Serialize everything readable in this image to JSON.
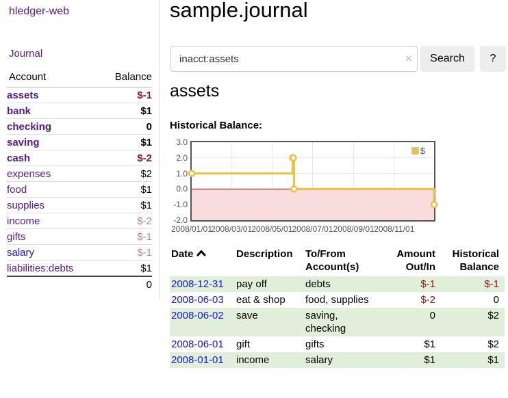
{
  "app": {
    "brand": "hledger-web",
    "nav_journal": "Journal"
  },
  "colors": {
    "accent_purple": "#551a8b",
    "link_blue": "#1515e0",
    "negative_red": "#8b1414",
    "negative_faded_red": "#bd8181",
    "row_green": "#e0eeda",
    "chart_line_gold": "#e8c240",
    "zero_line_dark_red": "#8b0000",
    "negative_region_pink": "#fadcdc"
  },
  "sidebar": {
    "header": {
      "account": "Account",
      "balance": "Balance"
    },
    "accounts": [
      {
        "name": "assets",
        "depth": 1,
        "link_color": "purple",
        "bold": true,
        "balance": "$-1",
        "bal_color": "neg"
      },
      {
        "name": "bank",
        "depth": 2,
        "link_color": "purple",
        "bold": true,
        "balance": "$1",
        "bal_color": "black"
      },
      {
        "name": "checking",
        "depth": 3,
        "link_color": "purple",
        "bold": true,
        "balance": "0",
        "bal_color": "black"
      },
      {
        "name": "saving",
        "depth": 3,
        "link_color": "purple",
        "bold": true,
        "balance": "$1",
        "bal_color": "black"
      },
      {
        "name": "cash",
        "depth": 2,
        "link_color": "purple",
        "bold": true,
        "balance": "$-2",
        "bal_color": "neg"
      },
      {
        "name": "expenses",
        "depth": 1,
        "link_color": "purple",
        "bold": false,
        "balance": "$2",
        "bal_color": "black"
      },
      {
        "name": "food",
        "depth": 2,
        "link_color": "purple",
        "bold": false,
        "balance": "$1",
        "bal_color": "black"
      },
      {
        "name": "supplies",
        "depth": 2,
        "link_color": "purple",
        "bold": false,
        "balance": "$1",
        "bal_color": "black"
      },
      {
        "name": "income",
        "depth": 1,
        "link_color": "purple",
        "bold": false,
        "balance": "$-2",
        "bal_color": "negfade"
      },
      {
        "name": "gifts",
        "depth": 2,
        "link_color": "purple",
        "bold": false,
        "balance": "$-1",
        "bal_color": "negfade"
      },
      {
        "name": "salary",
        "depth": 2,
        "link_color": "blue",
        "bold": false,
        "balance": "$-1",
        "bal_color": "negfade"
      },
      {
        "name": "liabilities:debts",
        "depth": 1,
        "link_color": "purple",
        "bold": false,
        "balance": "$1",
        "bal_color": "black"
      }
    ],
    "total": "0"
  },
  "header": {
    "title": "sample.journal"
  },
  "search": {
    "query": "inacct:assets",
    "clear_icon": "×",
    "search_label": "Search",
    "help_label": "?"
  },
  "account_page": {
    "heading": "assets",
    "chart_label": "Historical Balance:"
  },
  "chart_data": {
    "type": "line",
    "step": true,
    "title": "Historical Balance of assets",
    "series": [
      {
        "name": "$",
        "color": "#e8c240",
        "points": [
          [
            "2008-01-01",
            1
          ],
          [
            "2008-06-01",
            2
          ],
          [
            "2008-06-02",
            2
          ],
          [
            "2008-06-03",
            0
          ],
          [
            "2008-12-31",
            -1
          ]
        ]
      }
    ],
    "x_range": [
      "2008-01-01",
      "2008-12-31"
    ],
    "ylim": [
      -2,
      3
    ],
    "y_ticks": [
      3.0,
      2.0,
      1.0,
      0.0,
      -1.0,
      -2.0
    ],
    "x_ticks": [
      "2008/01/01",
      "2008/03/01",
      "2008/05/01",
      "2008/07/01",
      "2008/09/01",
      "2008/11/01"
    ],
    "legend": {
      "label": "$",
      "position": "top-right"
    },
    "grid": true,
    "negative_region_color": "#fadcdc",
    "zero_line_color": "#8b0000"
  },
  "register": {
    "columns": [
      {
        "label": "Date",
        "sort": "ascending"
      },
      {
        "label": "Description"
      },
      {
        "label": "To/From Account(s)"
      },
      {
        "label": "Amount Out/In"
      },
      {
        "label": "Historical Balance"
      }
    ],
    "rows": [
      {
        "date": "2008-12-31",
        "description": "pay off",
        "accounts": "debts",
        "amount": "$-1",
        "amount_neg": true,
        "balance": "$-1",
        "balance_neg": true,
        "green": true
      },
      {
        "date": "2008-06-03",
        "description": "eat & shop",
        "accounts": "food, supplies",
        "amount": "$-2",
        "amount_neg": true,
        "balance": "0",
        "balance_neg": false,
        "green": false
      },
      {
        "date": "2008-06-02",
        "description": "save",
        "accounts": "saving, checking",
        "amount": "0",
        "amount_neg": false,
        "balance": "$2",
        "balance_neg": false,
        "green": true
      },
      {
        "date": "2008-06-01",
        "description": "gift",
        "accounts": "gifts",
        "amount": "$1",
        "amount_neg": false,
        "balance": "$2",
        "balance_neg": false,
        "green": false
      },
      {
        "date": "2008-01-01",
        "description": "income",
        "accounts": "salary",
        "amount": "$1",
        "amount_neg": false,
        "balance": "$1",
        "balance_neg": false,
        "green": true
      }
    ]
  }
}
